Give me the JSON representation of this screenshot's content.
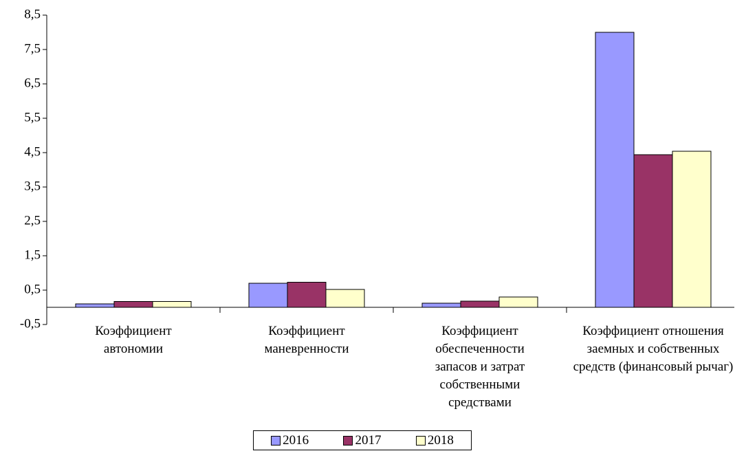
{
  "chart_data": {
    "type": "bar",
    "categories": [
      "Коэффициент автономии",
      "Коэффициент маневренности",
      "Коэффициент обеспеченности запасов и затрат собственными средствами",
      "Коэффициент отношения заемных и собственных средств (финансовый рычаг)"
    ],
    "series": [
      {
        "name": "2016",
        "color": "#9999ff",
        "values": [
          0.1,
          0.7,
          0.12,
          8.0
        ]
      },
      {
        "name": "2017",
        "color": "#993366",
        "values": [
          0.17,
          0.73,
          0.18,
          4.44
        ]
      },
      {
        "name": "2018",
        "color": "#ffffcc",
        "values": [
          0.17,
          0.52,
          0.3,
          4.54
        ]
      }
    ],
    "ylim": [
      -0.5,
      8.5
    ],
    "yticks": [
      {
        "value": -0.5,
        "label": "-0,5"
      },
      {
        "value": 0.5,
        "label": "0,5"
      },
      {
        "value": 1.5,
        "label": "1,5"
      },
      {
        "value": 2.5,
        "label": "2,5"
      },
      {
        "value": 3.5,
        "label": "3,5"
      },
      {
        "value": 4.5,
        "label": "4,5"
      },
      {
        "value": 5.5,
        "label": "5,5"
      },
      {
        "value": 6.5,
        "label": "6,5"
      },
      {
        "value": 7.5,
        "label": "7,5"
      },
      {
        "value": 8.5,
        "label": "8,5"
      }
    ],
    "grid": false,
    "legend": "bottom"
  }
}
